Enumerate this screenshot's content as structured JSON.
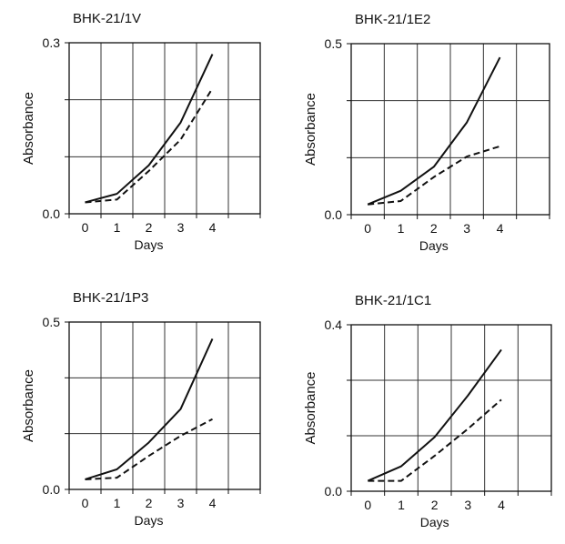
{
  "chart_data": [
    {
      "type": "line",
      "title": "BHK-21/1V",
      "xlabel": "Days",
      "ylabel": "Absorbance",
      "x": [
        0,
        1,
        2,
        3,
        4
      ],
      "ylim": [
        0,
        0.3
      ],
      "ytick_labels": [
        "0.0",
        "0.3"
      ],
      "xtick_labels": [
        "0",
        "1",
        "2",
        "3",
        "4"
      ],
      "grid": true,
      "series": [
        {
          "style": "solid",
          "values": [
            0.02,
            0.035,
            0.085,
            0.16,
            0.28
          ]
        },
        {
          "style": "dashed",
          "values": [
            0.02,
            0.025,
            0.075,
            0.13,
            0.22
          ]
        }
      ]
    },
    {
      "type": "line",
      "title": "BHK-21/1E2",
      "xlabel": "Days",
      "ylabel": "Absorbance",
      "x": [
        0,
        1,
        2,
        3,
        4
      ],
      "ylim": [
        0,
        0.5
      ],
      "ytick_labels": [
        "0.0",
        "0.5"
      ],
      "xtick_labels": [
        "0",
        "1",
        "2",
        "3",
        "4"
      ],
      "grid": true,
      "series": [
        {
          "style": "solid",
          "values": [
            0.03,
            0.07,
            0.14,
            0.27,
            0.46
          ]
        },
        {
          "style": "dashed",
          "values": [
            0.03,
            0.04,
            0.11,
            0.17,
            0.2
          ]
        }
      ]
    },
    {
      "type": "line",
      "title": "BHK-21/1P3",
      "xlabel": "Days",
      "ylabel": "Absorbance",
      "x": [
        0,
        1,
        2,
        3,
        4
      ],
      "ylim": [
        0,
        0.5
      ],
      "ytick_labels": [
        "0.0",
        "0.5"
      ],
      "xtick_labels": [
        "0",
        "1",
        "2",
        "3",
        "4"
      ],
      "grid": true,
      "series": [
        {
          "style": "solid",
          "values": [
            0.03,
            0.06,
            0.14,
            0.24,
            0.45
          ]
        },
        {
          "style": "dashed",
          "values": [
            0.03,
            0.035,
            0.1,
            0.16,
            0.21
          ]
        }
      ]
    },
    {
      "type": "line",
      "title": "BHK-21/1C1",
      "xlabel": "Days",
      "ylabel": "Absorbance",
      "x": [
        0,
        1,
        2,
        3,
        4
      ],
      "ylim": [
        0,
        0.4
      ],
      "ytick_labels": [
        "0.0",
        "0.4"
      ],
      "xtick_labels": [
        "0",
        "1",
        "2",
        "3",
        "4"
      ],
      "grid": true,
      "series": [
        {
          "style": "solid",
          "values": [
            0.025,
            0.06,
            0.13,
            0.23,
            0.34
          ]
        },
        {
          "style": "dashed",
          "values": [
            0.025,
            0.025,
            0.085,
            0.15,
            0.22
          ]
        }
      ]
    }
  ]
}
